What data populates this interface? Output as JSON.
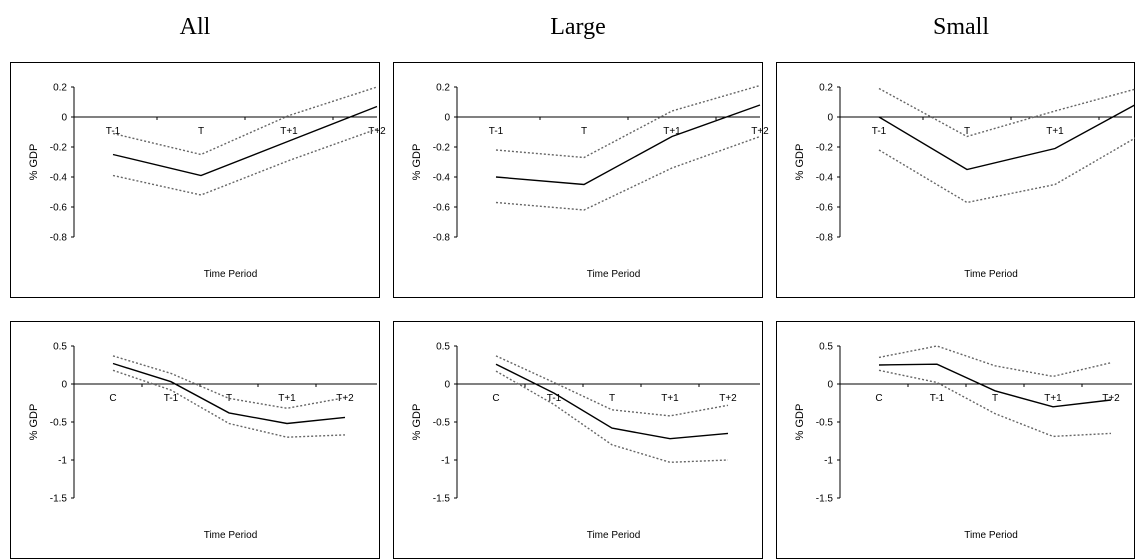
{
  "column_titles": [
    "All",
    "Large",
    "Small"
  ],
  "chart_data": [
    {
      "type": "line",
      "group": "All",
      "categories": [
        "T-1",
        "T",
        "T+1",
        "T+2"
      ],
      "xlabel": "Time Period",
      "ylabel": "% GDP",
      "ylim": [
        -0.8,
        0.2
      ],
      "yticks": [
        "0.2",
        "0",
        "-0.2",
        "-0.4",
        "-0.6",
        "-0.8"
      ],
      "ytick_values": [
        0.2,
        0,
        -0.2,
        -0.4,
        -0.6,
        -0.8
      ],
      "series": [
        {
          "values": [
            -0.25,
            -0.39,
            -0.16,
            0.07
          ],
          "style": "solid"
        },
        {
          "values": [
            -0.11,
            -0.25,
            0.01,
            0.2
          ],
          "style": "dotted"
        },
        {
          "values": [
            -0.39,
            -0.52,
            -0.29,
            -0.08
          ],
          "style": "dotted"
        }
      ]
    },
    {
      "type": "line",
      "group": "Large",
      "categories": [
        "T-1",
        "T",
        "T+1",
        "T+2"
      ],
      "xlabel": "Time Period",
      "ylabel": "% GDP",
      "ylim": [
        -0.8,
        0.2
      ],
      "yticks": [
        "0.2",
        "0",
        "-0.2",
        "-0.4",
        "-0.6",
        "-0.8"
      ],
      "ytick_values": [
        0.2,
        0,
        -0.2,
        -0.4,
        -0.6,
        -0.8
      ],
      "series": [
        {
          "values": [
            -0.4,
            -0.45,
            -0.13,
            0.08
          ],
          "style": "solid"
        },
        {
          "values": [
            -0.22,
            -0.27,
            0.04,
            0.21
          ],
          "style": "dotted"
        },
        {
          "values": [
            -0.57,
            -0.62,
            -0.34,
            -0.13
          ],
          "style": "dotted"
        }
      ]
    },
    {
      "type": "line",
      "group": "Small",
      "categories": [
        "T-1",
        "T",
        "T+1",
        "T+2"
      ],
      "xlabel": "Time Period",
      "ylabel": "% GDP",
      "ylim": [
        -0.8,
        0.2
      ],
      "yticks": [
        "0.2",
        "0",
        "-0.2",
        "-0.4",
        "-0.6",
        "-0.8"
      ],
      "ytick_values": [
        0.2,
        0,
        -0.2,
        -0.4,
        -0.6,
        -0.8
      ],
      "series": [
        {
          "values": [
            0.0,
            -0.35,
            -0.21,
            0.11
          ],
          "style": "solid"
        },
        {
          "values": [
            0.19,
            -0.13,
            0.04,
            0.2
          ],
          "style": "dotted"
        },
        {
          "values": [
            -0.22,
            -0.57,
            -0.45,
            -0.11
          ],
          "style": "dotted"
        }
      ]
    },
    {
      "type": "line",
      "group": "All",
      "categories": [
        "C",
        "T-1",
        "T",
        "T+1",
        "T+2"
      ],
      "xlabel": "Time Period",
      "ylabel": "% GDP",
      "ylim": [
        -1.5,
        0.5
      ],
      "yticks": [
        "0.5",
        "0",
        "-0.5",
        "-1",
        "-1.5"
      ],
      "ytick_values": [
        0.5,
        0,
        -0.5,
        -1,
        -1.5
      ],
      "series": [
        {
          "values": [
            0.27,
            0.03,
            -0.38,
            -0.52,
            -0.44
          ],
          "style": "solid"
        },
        {
          "values": [
            0.37,
            0.14,
            -0.19,
            -0.32,
            -0.18
          ],
          "style": "dotted"
        },
        {
          "values": [
            0.18,
            -0.08,
            -0.52,
            -0.7,
            -0.67
          ],
          "style": "dotted"
        }
      ]
    },
    {
      "type": "line",
      "group": "Large",
      "categories": [
        "C",
        "T-1",
        "T",
        "T+1",
        "T+2"
      ],
      "xlabel": "Time Period",
      "ylabel": "% GDP",
      "ylim": [
        -1.5,
        0.5
      ],
      "yticks": [
        "0.5",
        "0",
        "-0.5",
        "-1",
        "-1.5"
      ],
      "ytick_values": [
        0.5,
        0,
        -0.5,
        -1,
        -1.5
      ],
      "series": [
        {
          "values": [
            0.26,
            -0.12,
            -0.58,
            -0.72,
            -0.65
          ],
          "style": "solid"
        },
        {
          "values": [
            0.37,
            0.02,
            -0.34,
            -0.42,
            -0.28
          ],
          "style": "dotted"
        },
        {
          "values": [
            0.17,
            -0.27,
            -0.8,
            -1.03,
            -1.0
          ],
          "style": "dotted"
        }
      ]
    },
    {
      "type": "line",
      "group": "Small",
      "categories": [
        "C",
        "T-1",
        "T",
        "T+1",
        "T+2"
      ],
      "xlabel": "Time Period",
      "ylabel": "% GDP",
      "ylim": [
        -1.5,
        0.5
      ],
      "yticks": [
        "0.5",
        "0",
        "-0.5",
        "-1",
        "-1.5"
      ],
      "ytick_values": [
        0.5,
        0,
        -0.5,
        -1,
        -1.5
      ],
      "series": [
        {
          "values": [
            0.25,
            0.26,
            -0.09,
            -0.3,
            -0.21
          ],
          "style": "solid"
        },
        {
          "values": [
            0.35,
            0.5,
            0.24,
            0.1,
            0.28
          ],
          "style": "dotted"
        },
        {
          "values": [
            0.18,
            0.02,
            -0.39,
            -0.69,
            -0.65
          ],
          "style": "dotted"
        }
      ]
    }
  ]
}
